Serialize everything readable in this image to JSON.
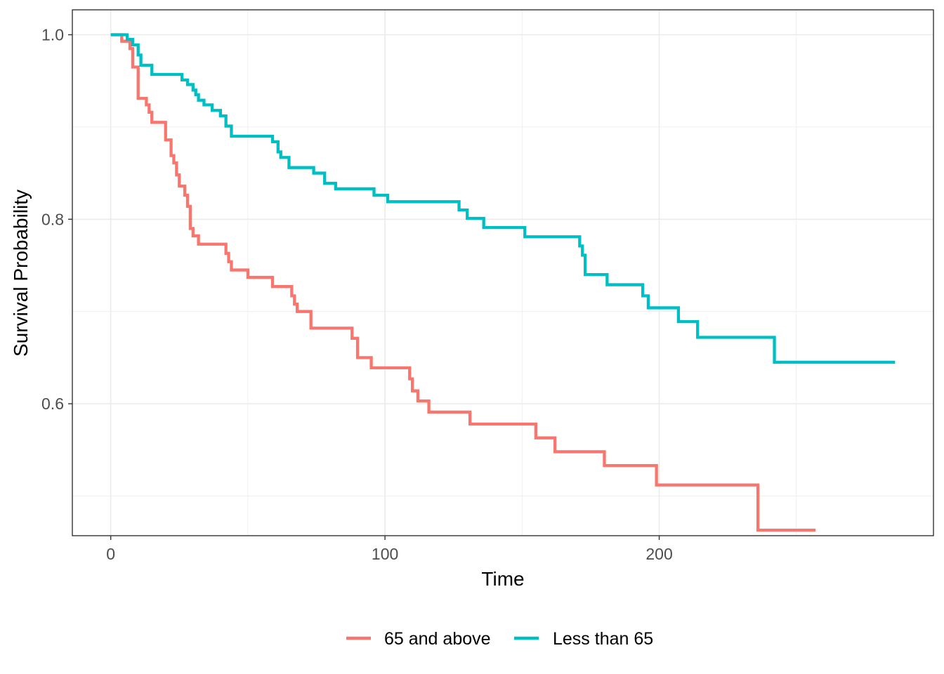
{
  "chart_data": {
    "type": "line",
    "step": true,
    "title": "",
    "xlabel": "Time",
    "ylabel": "Survival Probability",
    "xlim": [
      -14,
      300
    ],
    "ylim": [
      0.457,
      1.027
    ],
    "x_ticks": [
      0,
      100,
      200
    ],
    "x_minor": [
      50,
      150,
      250
    ],
    "y_ticks": [
      0.6,
      0.8,
      1.0
    ],
    "y_tick_labels": [
      "0.6",
      "0.8",
      "1.0"
    ],
    "y_minor": [
      0.5,
      0.7,
      0.9
    ],
    "grid": true,
    "legend_position": "bottom",
    "series": [
      {
        "name": "65 and above",
        "color": "#F8766D",
        "x": [
          0,
          4,
          7,
          8,
          10,
          13,
          14,
          15,
          16,
          20,
          22,
          23,
          24,
          25,
          27,
          28,
          29,
          30,
          32,
          42,
          43,
          44,
          50,
          59,
          66,
          67,
          68,
          73,
          88,
          90,
          95,
          109,
          110,
          112,
          116,
          131,
          155,
          162,
          180,
          199,
          236,
          257
        ],
        "y": [
          1.0,
          0.993,
          0.985,
          0.965,
          0.931,
          0.924,
          0.916,
          0.905,
          0.905,
          0.886,
          0.869,
          0.861,
          0.848,
          0.836,
          0.826,
          0.814,
          0.79,
          0.782,
          0.773,
          0.763,
          0.754,
          0.745,
          0.737,
          0.727,
          0.717,
          0.708,
          0.7,
          0.682,
          0.671,
          0.65,
          0.639,
          0.627,
          0.614,
          0.603,
          0.591,
          0.578,
          0.563,
          0.548,
          0.533,
          0.512,
          0.463,
          0.463
        ]
      },
      {
        "name": "Less than 65",
        "color": "#00BFC4",
        "x": [
          0,
          6,
          8,
          10,
          11,
          15,
          26,
          28,
          30,
          31,
          32,
          34,
          37,
          40,
          42,
          44,
          45,
          59,
          61,
          62,
          65,
          74,
          78,
          82,
          96,
          101,
          127,
          130,
          136,
          151,
          171,
          172,
          173,
          181,
          194,
          196,
          207,
          214,
          242,
          286
        ],
        "y": [
          1.0,
          0.995,
          0.989,
          0.978,
          0.967,
          0.957,
          0.951,
          0.946,
          0.94,
          0.935,
          0.929,
          0.924,
          0.918,
          0.912,
          0.901,
          0.89,
          0.89,
          0.884,
          0.873,
          0.867,
          0.856,
          0.85,
          0.839,
          0.833,
          0.826,
          0.819,
          0.81,
          0.801,
          0.791,
          0.781,
          0.771,
          0.761,
          0.74,
          0.729,
          0.717,
          0.704,
          0.689,
          0.672,
          0.645,
          0.645
        ]
      }
    ]
  }
}
